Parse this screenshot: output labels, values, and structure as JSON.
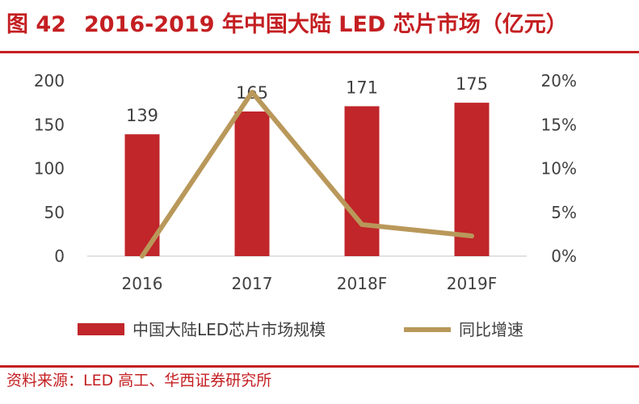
{
  "header": {
    "figure_no": "图 42",
    "title": "2016-2019 年中国大陆 LED 芯片市场（亿元）"
  },
  "footer": {
    "source": "资料来源：LED 高工、华西证券研究所"
  },
  "colors": {
    "accent": "#c41f22",
    "bar": "#c0262a",
    "line": "#b9985a",
    "text": "#404040",
    "axis": "#d9d9d9"
  },
  "chart_data": {
    "type": "bar+line",
    "categories": [
      "2016",
      "2017",
      "2018F",
      "2019F"
    ],
    "series": [
      {
        "name": "中国大陆LED芯片市场规模",
        "type": "bar",
        "axis": "left",
        "values": [
          139,
          165,
          171,
          175
        ],
        "data_labels": [
          "139",
          "165",
          "171",
          "175"
        ]
      },
      {
        "name": "同比增速",
        "type": "line",
        "axis": "right",
        "values": [
          0,
          18.7,
          3.6,
          2.3
        ]
      }
    ],
    "y_left": {
      "min": 0,
      "max": 200,
      "ticks": [
        0,
        50,
        100,
        150,
        200
      ],
      "tick_labels": [
        "0",
        "50",
        "100",
        "150",
        "200"
      ]
    },
    "y_right": {
      "min": 0,
      "max": 20,
      "ticks": [
        0,
        5,
        10,
        15,
        20
      ],
      "tick_labels": [
        "0%",
        "5%",
        "10%",
        "15%",
        "20%"
      ]
    },
    "legend": [
      "中国大陆LED芯片市场规模",
      "同比增速"
    ],
    "legend_position": "bottom",
    "grid": false
  }
}
